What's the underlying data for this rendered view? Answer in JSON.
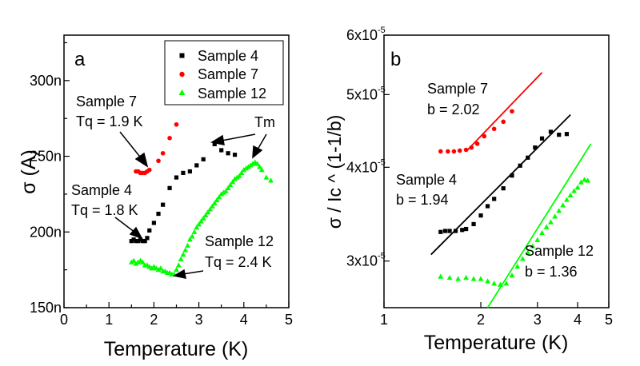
{
  "chart_data": [
    {
      "type": "scatter",
      "panel_label": "a",
      "xlabel": "Temperature (K)",
      "ylabel": "σ (A)",
      "xlim": [
        0,
        5
      ],
      "ylim": [
        150,
        330
      ],
      "x_ticks": [
        0,
        0.5,
        1,
        1.5,
        2,
        2.5,
        3,
        3.5,
        4,
        4.5,
        5
      ],
      "x_tick_labels": [
        "0",
        "",
        "1",
        "",
        "2",
        "",
        "3",
        "",
        "4",
        "",
        "5"
      ],
      "y_ticks": [
        150,
        200,
        250,
        300
      ],
      "y_tick_labels": [
        "150n",
        "200n",
        "250n",
        "300n"
      ],
      "legend_position": "top-right",
      "series": [
        {
          "name": "Sample 4",
          "color": "#000000",
          "marker": "square",
          "x": [
            1.5,
            1.55,
            1.6,
            1.65,
            1.7,
            1.75,
            1.8,
            1.85,
            1.9,
            2.0,
            2.1,
            2.2,
            2.35,
            2.5,
            2.65,
            2.8,
            2.95,
            3.1,
            3.35,
            3.5,
            3.65,
            3.8
          ],
          "y": [
            194,
            195,
            194,
            194,
            195,
            194,
            194,
            196,
            201,
            206,
            212,
            218,
            229,
            236,
            239,
            240,
            244,
            248,
            258,
            254,
            252,
            251
          ]
        },
        {
          "name": "Sample 7",
          "color": "#ff0000",
          "marker": "circle",
          "x": [
            1.6,
            1.65,
            1.7,
            1.75,
            1.8,
            1.85,
            1.9,
            2.1,
            2.2,
            2.35,
            2.5
          ],
          "y": [
            240,
            240,
            239,
            239,
            239,
            240,
            241,
            247,
            252,
            262,
            271
          ]
        },
        {
          "name": "Sample 12",
          "color": "#00ff00",
          "marker": "triangle",
          "x": [
            1.5,
            1.55,
            1.6,
            1.65,
            1.7,
            1.75,
            1.8,
            1.85,
            1.9,
            1.95,
            2.0,
            2.05,
            2.1,
            2.15,
            2.2,
            2.25,
            2.3,
            2.35,
            2.4,
            2.45,
            2.5,
            2.55,
            2.6,
            2.65,
            2.7,
            2.75,
            2.8,
            2.85,
            2.9,
            2.95,
            3.0,
            3.05,
            3.1,
            3.15,
            3.2,
            3.25,
            3.3,
            3.35,
            3.4,
            3.45,
            3.5,
            3.55,
            3.6,
            3.65,
            3.7,
            3.75,
            3.8,
            3.85,
            3.9,
            3.95,
            4.0,
            4.05,
            4.1,
            4.15,
            4.2,
            4.25,
            4.3,
            4.35,
            4.4,
            4.5,
            4.6
          ],
          "y": [
            180,
            181,
            179,
            180,
            181,
            180,
            178,
            178,
            177,
            176,
            177,
            176,
            175,
            176,
            174,
            174,
            173,
            173,
            172,
            172,
            175,
            178,
            182,
            185,
            188,
            191,
            195,
            197,
            200,
            203,
            205,
            207,
            209,
            211,
            213,
            215,
            217,
            219,
            221,
            223,
            225,
            226,
            227,
            229,
            231,
            233,
            235,
            236,
            237,
            239,
            241,
            242,
            243,
            244,
            245,
            246,
            245,
            243,
            241,
            236,
            234
          ]
        }
      ],
      "annotations": [
        {
          "id": "s7",
          "lines": [
            "Sample 7",
            "Tq = 1.9 K"
          ]
        },
        {
          "id": "s4",
          "lines": [
            "Sample 4",
            "Tq = 1.8 K"
          ]
        },
        {
          "id": "s12",
          "lines": [
            "Sample 12",
            "Tq = 2.4 K"
          ]
        },
        {
          "id": "tm",
          "lines": [
            "Tm"
          ]
        }
      ]
    },
    {
      "type": "scatter",
      "panel_label": "b",
      "xscale": "log",
      "yscale": "log",
      "xlabel": "Temperature (K)",
      "ylabel": "σ / Ic ^ (1-1/b)",
      "xlim": [
        1,
        5
      ],
      "ylim": [
        2.6e-05,
        6e-05
      ],
      "x_ticks": [
        1,
        2,
        3,
        4,
        5
      ],
      "x_tick_labels": [
        "1",
        "2",
        "3",
        "4",
        "5"
      ],
      "y_ticks": [
        3e-05,
        4e-05,
        5e-05,
        6e-05
      ],
      "y_tick_mantissa": [
        "3x10",
        "4x10",
        "5x10",
        "6x10"
      ],
      "y_tick_exponent": "-5",
      "series": [
        {
          "name": "Sample 7",
          "b": "2.02",
          "color": "#ff0000",
          "marker": "circle",
          "x": [
            1.5,
            1.58,
            1.65,
            1.72,
            1.8,
            1.87,
            1.95,
            2.05,
            2.2,
            2.35,
            2.5
          ],
          "y": [
            4.2e-05,
            4.2e-05,
            4.2e-05,
            4.21e-05,
            4.22e-05,
            4.25e-05,
            4.3e-05,
            4.4e-05,
            4.5e-05,
            4.6e-05,
            4.75e-05
          ],
          "fit": {
            "x": [
              1.8,
              3.1
            ],
            "y": [
              4.2e-05,
              5.35e-05
            ]
          }
        },
        {
          "name": "Sample 4",
          "b": "1.94",
          "color": "#000000",
          "marker": "square",
          "x": [
            1.5,
            1.55,
            1.6,
            1.67,
            1.75,
            1.8,
            1.9,
            2.0,
            2.1,
            2.2,
            2.35,
            2.5,
            2.65,
            2.8,
            2.95,
            3.1,
            3.3,
            3.5,
            3.7
          ],
          "y": [
            3.28e-05,
            3.29e-05,
            3.29e-05,
            3.29e-05,
            3.3e-05,
            3.31e-05,
            3.36e-05,
            3.45e-05,
            3.55e-05,
            3.63e-05,
            3.75e-05,
            3.9e-05,
            4.02e-05,
            4.12e-05,
            4.25e-05,
            4.37e-05,
            4.46e-05,
            4.42e-05,
            4.43e-05
          ]
        },
        {
          "name": "Sample 12",
          "b": "1.36",
          "color": "#00ff00",
          "marker": "triangle",
          "x": [
            1.5,
            1.6,
            1.7,
            1.8,
            1.9,
            2.0,
            2.1,
            2.2,
            2.3,
            2.4,
            2.5,
            2.6,
            2.7,
            2.8,
            2.9,
            3.0,
            3.1,
            3.2,
            3.3,
            3.4,
            3.5,
            3.6,
            3.7,
            3.8,
            3.9,
            4.0,
            4.1,
            4.2,
            4.3
          ],
          "y": [
            2.86e-05,
            2.85e-05,
            2.84e-05,
            2.85e-05,
            2.84e-05,
            2.84e-05,
            2.82e-05,
            2.8e-05,
            2.79e-05,
            2.8e-05,
            2.87e-05,
            2.95e-05,
            3.02e-05,
            3.08e-05,
            3.14e-05,
            3.2e-05,
            3.27e-05,
            3.33e-05,
            3.38e-05,
            3.44e-05,
            3.5e-05,
            3.56e-05,
            3.62e-05,
            3.67e-05,
            3.72e-05,
            3.76e-05,
            3.82e-05,
            3.85e-05,
            3.84e-05
          ]
        }
      ],
      "fits": [
        {
          "series": "Sample 7",
          "color": "#ff0000",
          "x": [
            1.8,
            3.1
          ],
          "y": [
            4.2e-05,
            5.35e-05
          ]
        },
        {
          "series": "Sample 4",
          "color": "#000000",
          "x": [
            1.4,
            3.8
          ],
          "y": [
            3.06e-05,
            4.7e-05
          ]
        },
        {
          "series": "Sample 12",
          "color": "#00ff00",
          "x": [
            2.1,
            4.4
          ],
          "y": [
            2.6e-05,
            4.3e-05
          ]
        }
      ],
      "annotations": [
        {
          "id": "s7",
          "lines": [
            "Sample 7",
            "b = 2.02"
          ]
        },
        {
          "id": "s4",
          "lines": [
            "Sample 4",
            "b = 1.94"
          ]
        },
        {
          "id": "s12",
          "lines": [
            "Sample 12",
            "b = 1.36"
          ]
        }
      ]
    }
  ]
}
